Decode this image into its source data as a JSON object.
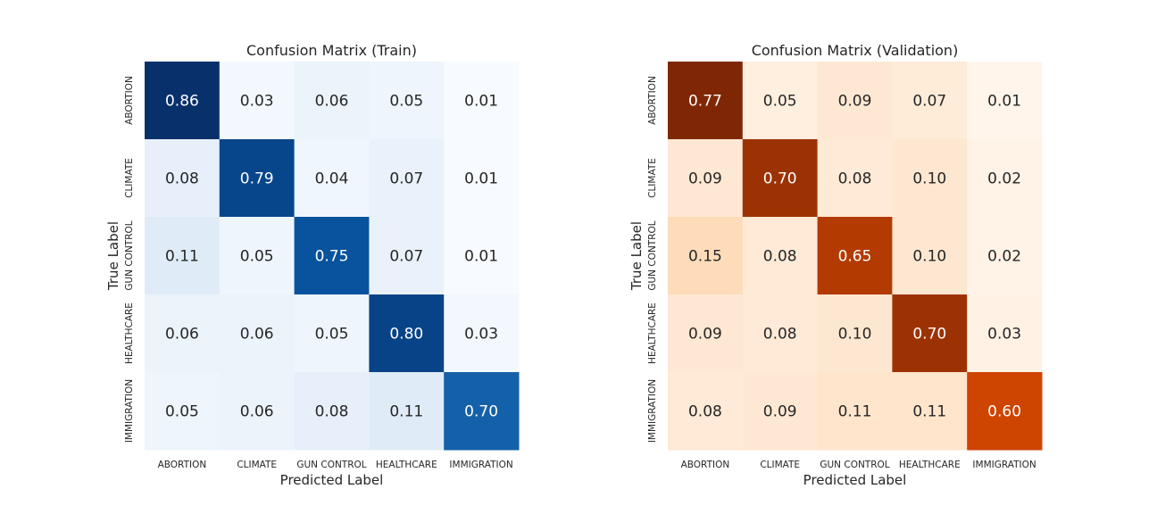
{
  "chart_data": [
    {
      "type": "heatmap",
      "title": "Confusion Matrix (Train)",
      "xlabel": "Predicted Label",
      "ylabel": "True Label",
      "x_categories": [
        "ABORTION",
        "CLIMATE",
        "GUN CONTROL",
        "HEALTHCARE",
        "IMMIGRATION"
      ],
      "y_categories": [
        "ABORTION",
        "CLIMATE",
        "GUN CONTROL",
        "HEALTHCARE",
        "IMMIGRATION"
      ],
      "values": [
        [
          0.86,
          0.03,
          0.06,
          0.05,
          0.01
        ],
        [
          0.08,
          0.79,
          0.04,
          0.07,
          0.01
        ],
        [
          0.11,
          0.05,
          0.75,
          0.07,
          0.01
        ],
        [
          0.06,
          0.06,
          0.05,
          0.8,
          0.03
        ],
        [
          0.05,
          0.06,
          0.08,
          0.11,
          0.7
        ]
      ],
      "colormap": "Blues",
      "value_format": "0.00"
    },
    {
      "type": "heatmap",
      "title": "Confusion Matrix (Validation)",
      "xlabel": "Predicted Label",
      "ylabel": "True Label",
      "x_categories": [
        "ABORTION",
        "CLIMATE",
        "GUN CONTROL",
        "HEALTHCARE",
        "IMMIGRATION"
      ],
      "y_categories": [
        "ABORTION",
        "CLIMATE",
        "GUN CONTROL",
        "HEALTHCARE",
        "IMMIGRATION"
      ],
      "values": [
        [
          0.77,
          0.05,
          0.09,
          0.07,
          0.01
        ],
        [
          0.09,
          0.7,
          0.08,
          0.1,
          0.02
        ],
        [
          0.15,
          0.08,
          0.65,
          0.1,
          0.02
        ],
        [
          0.09,
          0.08,
          0.1,
          0.7,
          0.03
        ],
        [
          0.08,
          0.09,
          0.11,
          0.11,
          0.6
        ]
      ],
      "colormap": "Oranges",
      "value_format": "0.00"
    }
  ],
  "colors": {
    "Blues": [
      "#f7fbff",
      "#deebf7",
      "#c6dbef",
      "#9ecae1",
      "#6baed6",
      "#4292c6",
      "#2171b5",
      "#08519c",
      "#08306b"
    ],
    "Oranges": [
      "#fff5eb",
      "#fee6ce",
      "#fdd0a2",
      "#fdae6b",
      "#fd8d3c",
      "#f16913",
      "#d94801",
      "#a63603",
      "#7f2704"
    ],
    "text_dark": "#262626",
    "text_light": "#ffffff"
  }
}
